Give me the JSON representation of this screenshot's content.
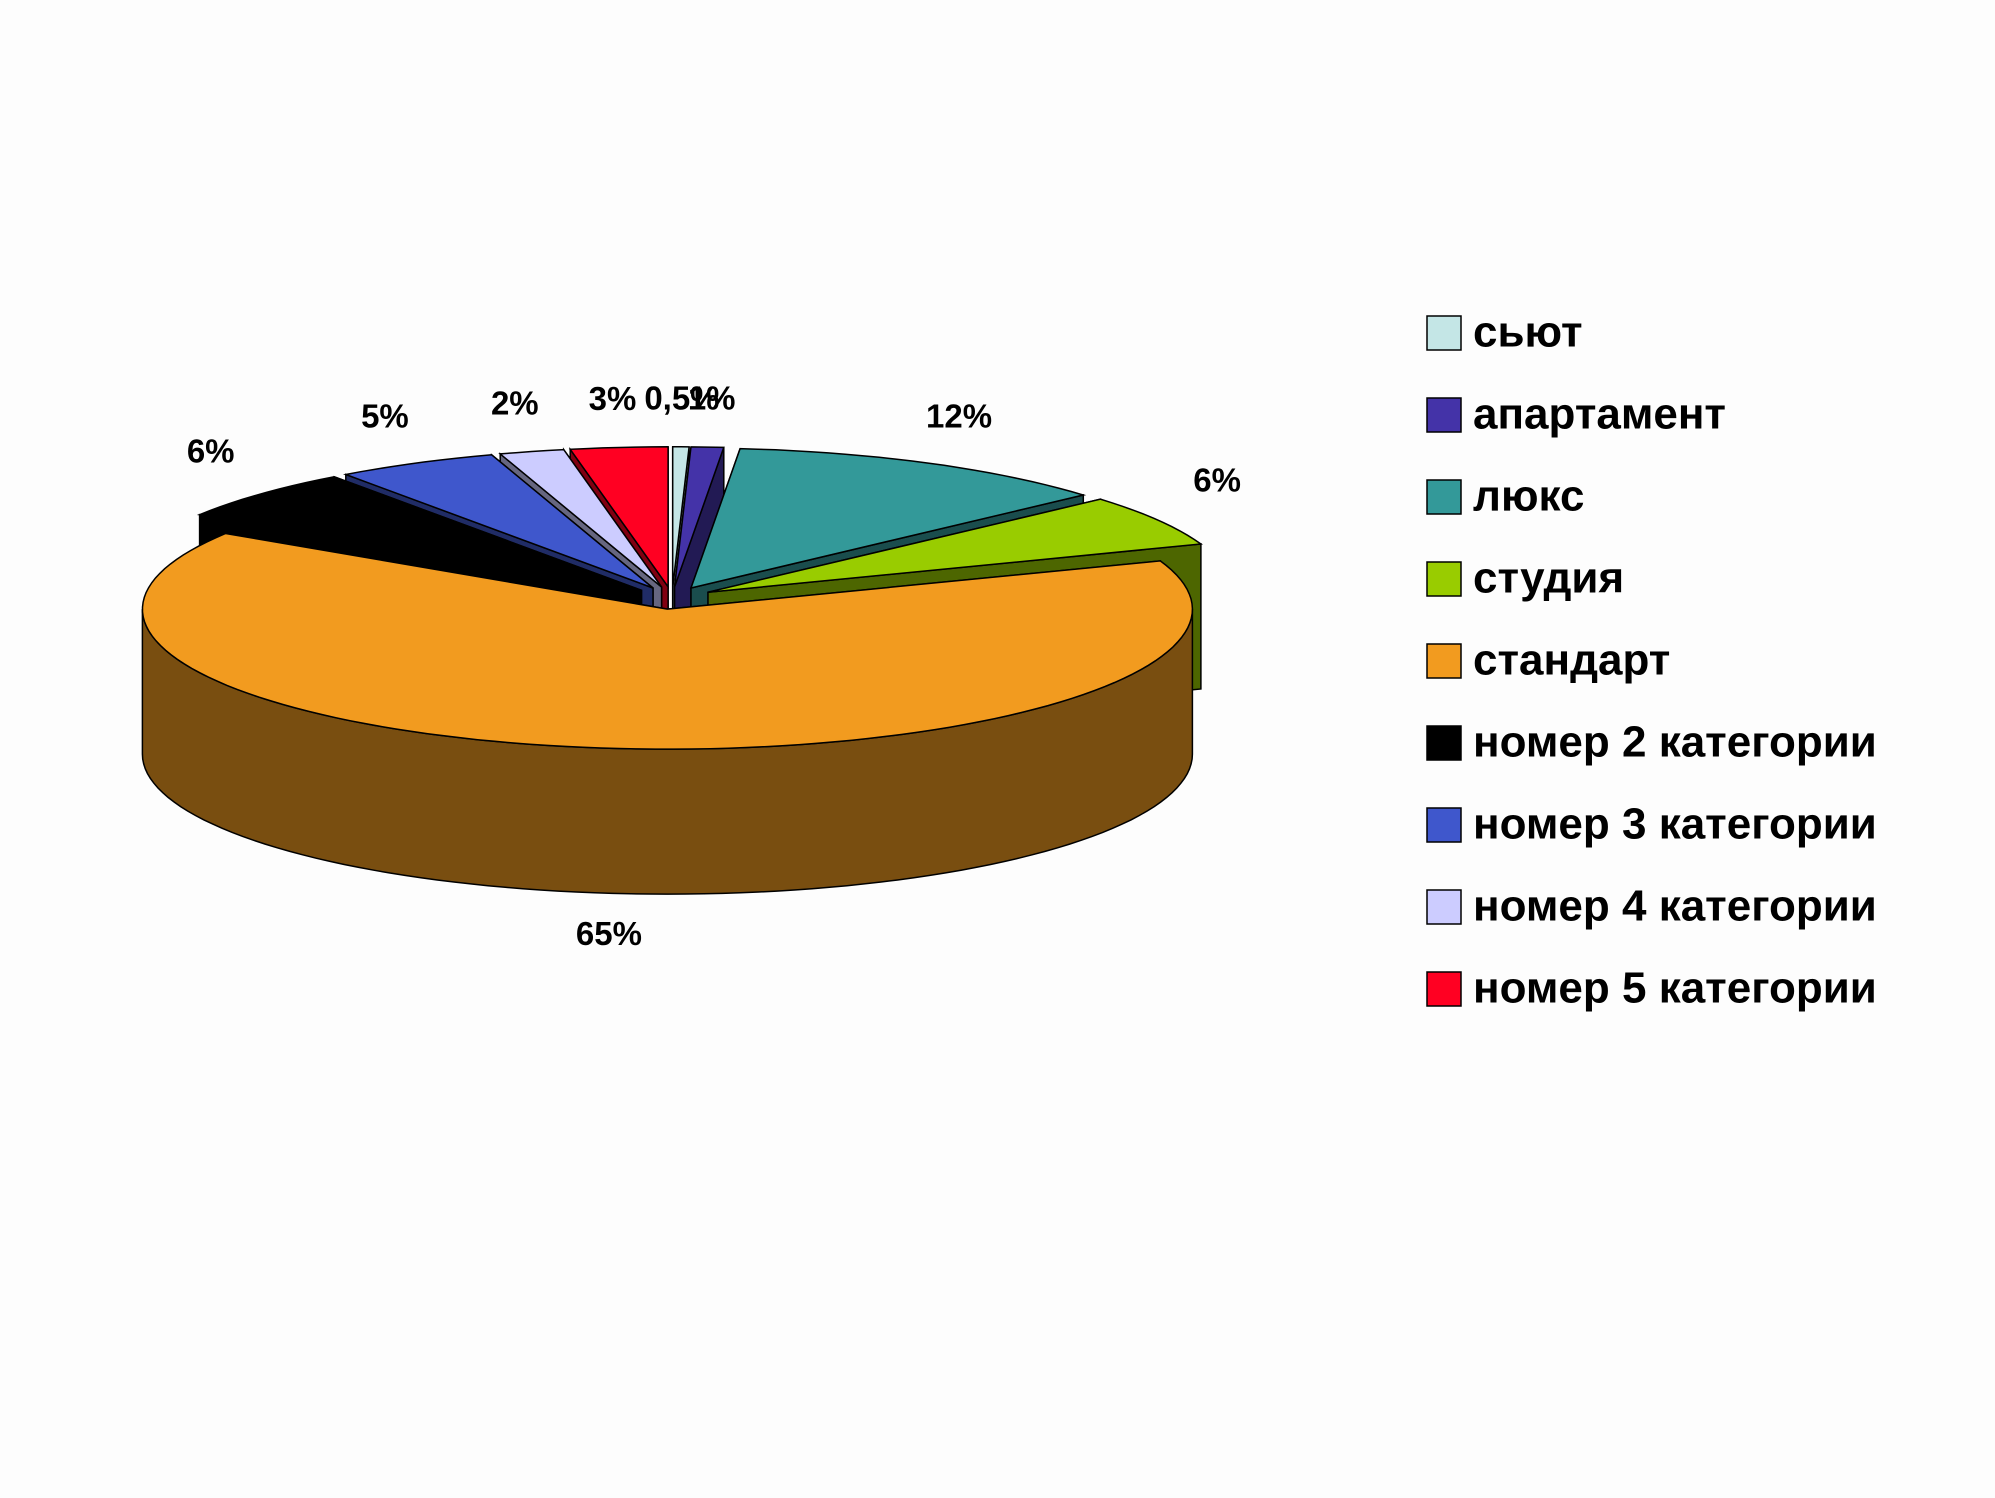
{
  "chart_data": {
    "type": "pie",
    "categories": [
      "сьют",
      "апартамент",
      "люкс",
      "студия",
      "стандарт",
      "номер 2 категории",
      "номер 3 категории",
      "номер 4 категории",
      "номер 5 категории"
    ],
    "values": [
      0.5,
      1,
      12,
      6,
      65,
      6,
      5,
      2,
      3
    ],
    "value_labels": [
      "0,5%",
      "1%",
      "12%",
      "6%",
      "65%",
      "6%",
      "5%",
      "2%",
      "3%"
    ],
    "colors": [
      "#c4e6e6",
      "#4433a8",
      "#339999",
      "#99cc00",
      "#f29b1f",
      "#000000",
      "#3f57cc",
      "#ccccff",
      "#ff0022"
    ],
    "legend": "right"
  }
}
